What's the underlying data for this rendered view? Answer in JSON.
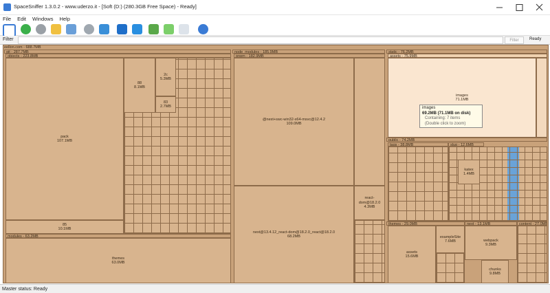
{
  "window_title": "SpaceSniffer 1.3.0.2 - www.uderzo.it - [Soft (D:) (280.3GB Free Space) - Ready]",
  "menu": [
    "File",
    "Edit",
    "Windows",
    "Help"
  ],
  "filter": {
    "label": "Filter",
    "button": "Filter",
    "status": "Ready"
  },
  "root": "eellon.com - 688.7MB",
  "headers": [
    "git - 287.7MB",
    "objects - 223.8MB",
    "modules - 63.2MB",
    "node_modules - 185.9MB",
    "pnpm - 182.9MB",
    "static - 76.2MB",
    "assets - 75.9MB",
    "public - 74.2MB",
    "tags - 38.8MB",
    "slug - 12.6MB",
    "themes - 29.0MB",
    "next - 13.1MB",
    "content - 27.0MB"
  ],
  "cells": [
    {
      "name": "pack",
      "size": "107.1MB"
    },
    {
      "name": "85",
      "size": "10.1MB"
    },
    {
      "name": "88",
      "size": "8.1MB"
    },
    {
      "name": "2c",
      "size": "5.3MB"
    },
    {
      "name": "83",
      "size": "2.7MB"
    },
    {
      "name": "themes",
      "size": "63.0MB"
    },
    {
      "name": "@next+swc-win32-x64-msvc@12.4.2",
      "size": "109.0MB"
    },
    {
      "name": "next@13.4.12_react-dom@18.2.0_react@18.2.0",
      "size": "68.2MB"
    },
    {
      "name": "images",
      "size": "71.1MB"
    },
    {
      "name": "react-dom@18.2.0",
      "size": "4.3MB"
    },
    {
      "name": "assets",
      "size": "15.6MB"
    },
    {
      "name": "exampleSite",
      "size": "7.6MB"
    },
    {
      "name": "webpack",
      "size": "9.3MB"
    },
    {
      "name": "chunks",
      "size": "9.8MB"
    },
    {
      "name": "katex",
      "size": "1.4MB"
    }
  ],
  "tooltip": {
    "title": "images",
    "size": "69.2MB (71.1MB on disk)",
    "items": "Containing: 7 items",
    "hint": "(Double click to zoom)"
  },
  "status": "Master status: Ready"
}
